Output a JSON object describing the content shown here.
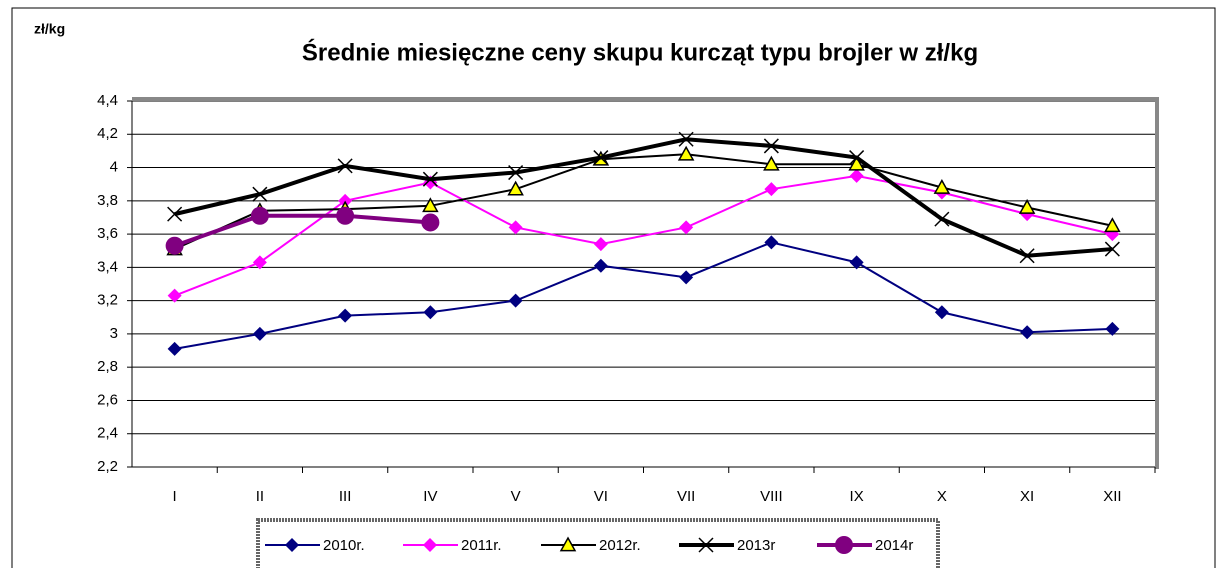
{
  "chart_data": {
    "type": "line",
    "title": "Średnie miesięczne ceny skupu kurcząt typu brojler w zł/kg",
    "y_label": "zł/kg",
    "categories": [
      "I",
      "II",
      "III",
      "IV",
      "V",
      "VI",
      "VII",
      "VIII",
      "IX",
      "X",
      "XI",
      "XII"
    ],
    "series": [
      {
        "name": "2010r.",
        "color": "#000080",
        "marker": "diamond",
        "line_width": 2,
        "values": [
          2.91,
          3.0,
          3.11,
          3.13,
          3.2,
          3.41,
          3.34,
          3.55,
          3.43,
          3.13,
          3.01,
          3.03
        ]
      },
      {
        "name": "2011r.",
        "color": "#ff00ff",
        "marker": "diamond",
        "line_width": 2,
        "values": [
          3.23,
          3.43,
          3.8,
          3.91,
          3.64,
          3.54,
          3.64,
          3.87,
          3.95,
          3.85,
          3.72,
          3.6
        ]
      },
      {
        "name": "2012r.",
        "color": "#000000",
        "marker": "triangle",
        "line_width": 2,
        "values": [
          3.51,
          3.74,
          3.75,
          3.77,
          3.87,
          4.05,
          4.08,
          4.02,
          4.02,
          3.88,
          3.76,
          3.65
        ]
      },
      {
        "name": "2013r",
        "color": "#000000",
        "marker": "x",
        "line_width": 4,
        "values": [
          3.72,
          3.84,
          4.01,
          3.93,
          3.97,
          4.06,
          4.17,
          4.13,
          4.06,
          3.69,
          3.47,
          3.51
        ]
      },
      {
        "name": "2014r",
        "color": "#800080",
        "marker": "circle",
        "line_width": 4,
        "values": [
          3.53,
          3.71,
          3.71,
          3.67,
          null,
          null,
          null,
          null,
          null,
          null,
          null,
          null
        ]
      }
    ],
    "ylim": [
      2.2,
      4.4
    ],
    "yticks": [
      {
        "value": 2.2,
        "label": "2,2"
      },
      {
        "value": 2.4,
        "label": "2,4"
      },
      {
        "value": 2.6,
        "label": "2,6"
      },
      {
        "value": 2.8,
        "label": "2,8"
      },
      3,
      {
        "value": 3.2,
        "label": "3,2"
      },
      {
        "value": 3.4,
        "label": "3,4"
      },
      {
        "value": 3.6,
        "label": "3,6"
      },
      {
        "value": 3.8,
        "label": "3,8"
      },
      4,
      {
        "value": 4.2,
        "label": "4,2"
      },
      {
        "value": 4.4,
        "label": "4,4"
      }
    ],
    "grid": true
  }
}
